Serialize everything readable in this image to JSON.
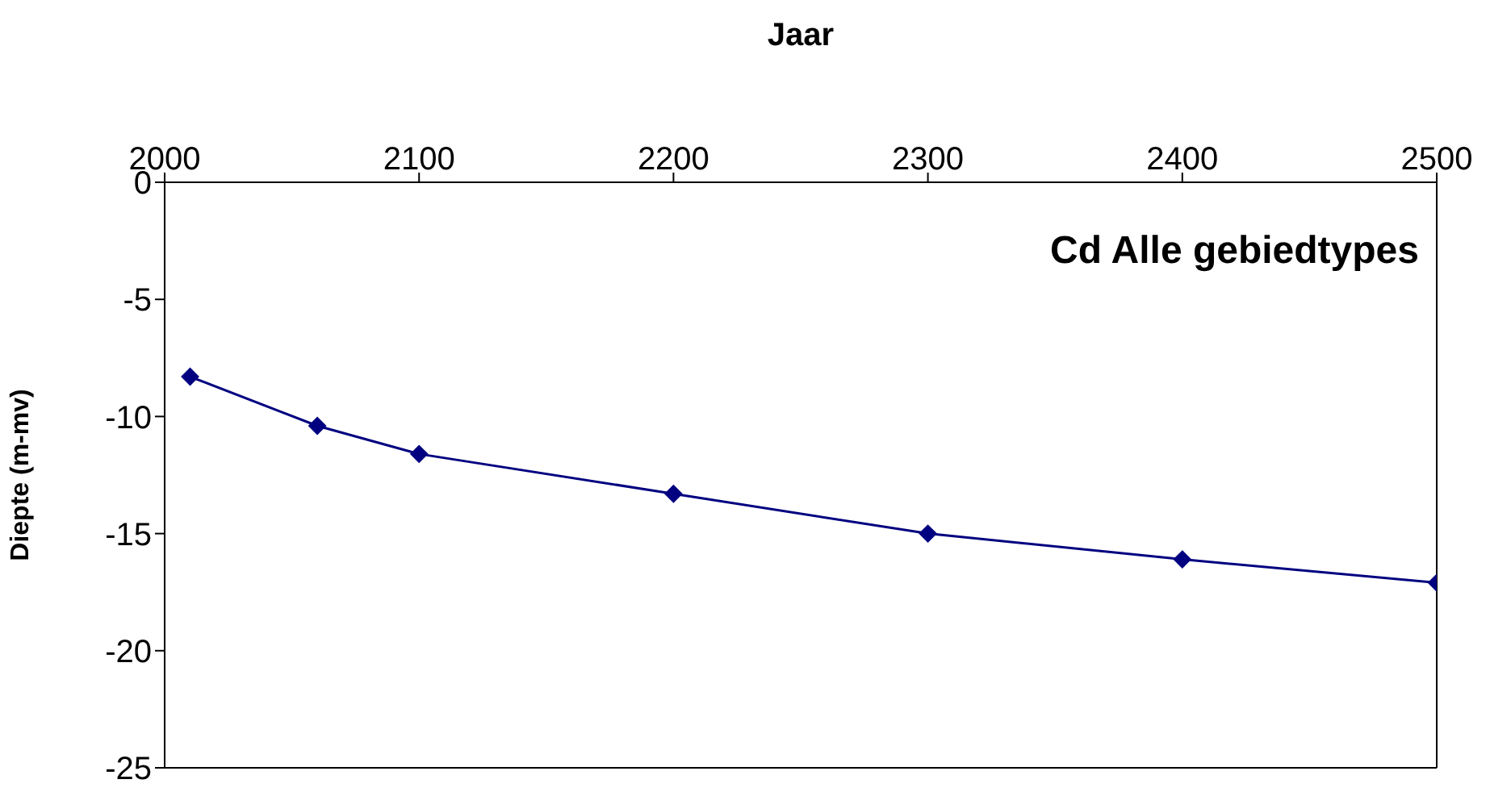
{
  "chart_data": {
    "type": "line",
    "title": "Cd Alle gebiedtypes",
    "xlabel": "Jaar",
    "ylabel": "Diepte (m-mv)",
    "x": [
      2010,
      2060,
      2100,
      2200,
      2300,
      2400,
      2500
    ],
    "series": [
      {
        "color": "#000080",
        "values": [
          -8.3,
          -10.4,
          -11.6,
          -13.3,
          -15,
          -16.1,
          -17.1
        ]
      }
    ],
    "xlim": [
      2000,
      2500
    ],
    "xticks": [
      2000,
      2100,
      2200,
      2300,
      2400,
      2500
    ],
    "ylim": [
      -25,
      0
    ],
    "yticks": [
      -25,
      -20,
      -15,
      -10,
      -5,
      0
    ],
    "grid": false,
    "marker": "diamond",
    "line_style": "solid"
  }
}
